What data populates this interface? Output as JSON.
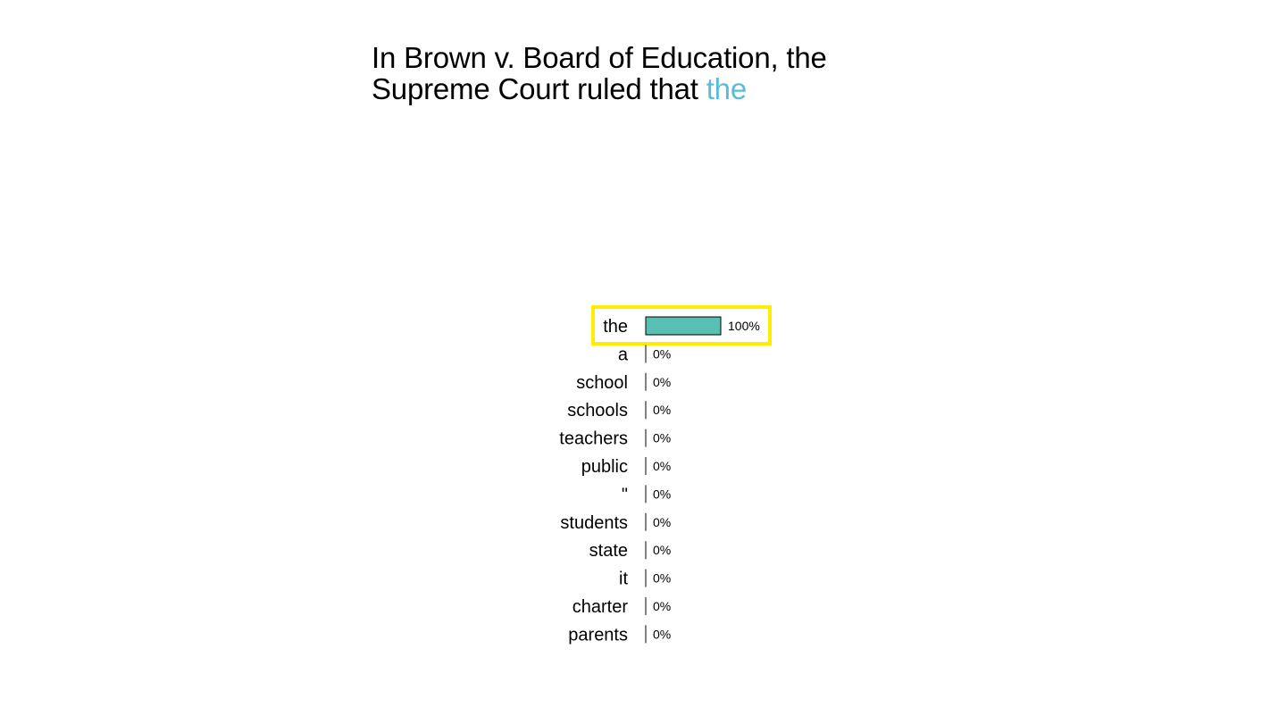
{
  "prompt": {
    "line1": "In Brown v. Board of Education, the",
    "line2_prefix": "Supreme Court ruled that ",
    "line2_highlight": "the"
  },
  "colors": {
    "highlight_text": "#5bbcd6",
    "bar_fill": "#58c0b2",
    "selection_box": "#ffee00"
  },
  "chart_data": {
    "type": "bar",
    "orientation": "horizontal",
    "categories": [
      "the",
      "a",
      "school",
      "schools",
      "teachers",
      "public",
      "\"",
      "students",
      "state",
      "it",
      "charter",
      "parents"
    ],
    "values": [
      100,
      0,
      0,
      0,
      0,
      0,
      0,
      0,
      0,
      0,
      0,
      0
    ],
    "value_labels": [
      "100%",
      "0%",
      "0%",
      "0%",
      "0%",
      "0%",
      "0%",
      "0%",
      "0%",
      "0%",
      "0%",
      "0%"
    ],
    "xlim": [
      0,
      100
    ],
    "selected": "the",
    "grid": false
  }
}
